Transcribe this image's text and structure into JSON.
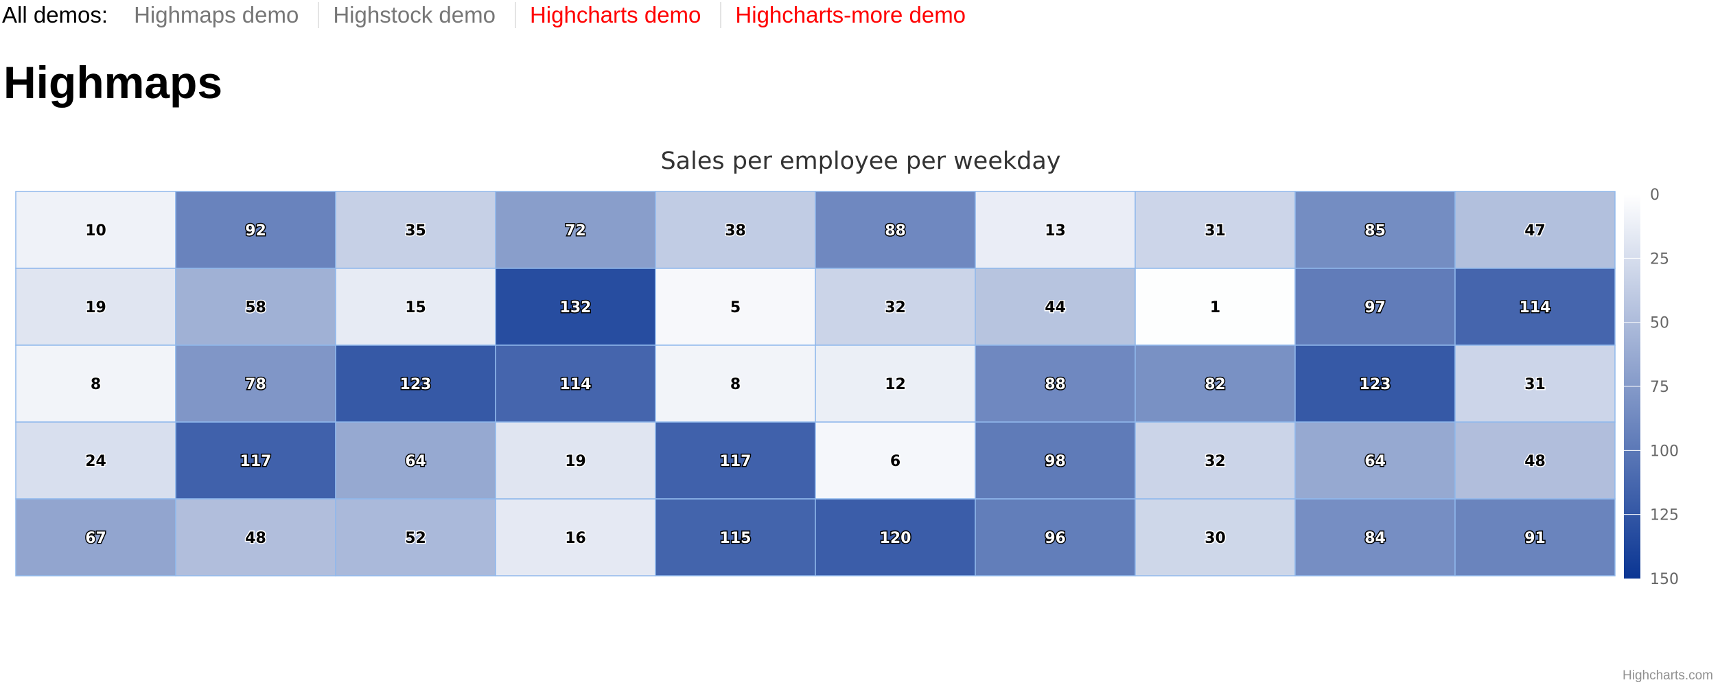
{
  "nav": {
    "all_label": "All demos:",
    "links": [
      {
        "label": "Highmaps demo",
        "color": "#777777"
      },
      {
        "label": "Highstock demo",
        "color": "#777777"
      },
      {
        "label": "Highcharts demo",
        "color": "#ff0000"
      },
      {
        "label": "Highcharts-more demo",
        "color": "#ff0000"
      }
    ]
  },
  "page_title": "Highmaps",
  "credits": "Highcharts.com",
  "chart_data": {
    "type": "heatmap",
    "title": "Sales per employee per weekday",
    "columns": 10,
    "rows": 5,
    "values": [
      [
        10,
        92,
        35,
        72,
        38,
        88,
        13,
        31,
        85,
        47
      ],
      [
        19,
        58,
        15,
        132,
        5,
        32,
        44,
        1,
        97,
        114
      ],
      [
        8,
        78,
        123,
        114,
        8,
        12,
        88,
        82,
        123,
        31
      ],
      [
        24,
        117,
        64,
        19,
        117,
        6,
        98,
        32,
        64,
        48
      ],
      [
        67,
        48,
        52,
        16,
        115,
        120,
        96,
        30,
        84,
        91
      ]
    ],
    "color_min": "#ffffff",
    "color_max": "#0a3593",
    "border_color": "#90b8ec",
    "legend": {
      "position": "right",
      "min": 0,
      "max": 150,
      "ticks": [
        "0",
        "25",
        "50",
        "75",
        "100",
        "125",
        "150"
      ]
    }
  }
}
